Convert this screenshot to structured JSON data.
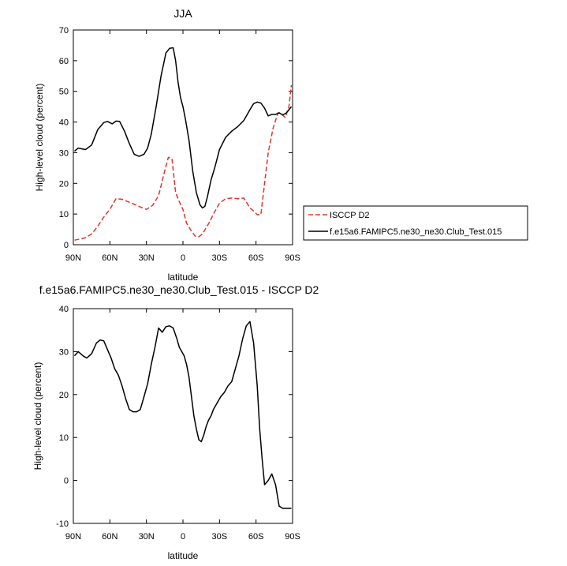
{
  "chart_data": [
    {
      "type": "line",
      "title": "JJA",
      "xlabel": "latitude",
      "ylabel": "High-level cloud (percent)",
      "xlim": [
        -90,
        90
      ],
      "ylim": [
        0,
        70
      ],
      "x_ticks": [
        -90,
        -60,
        -30,
        0,
        30,
        60,
        90
      ],
      "x_tick_labels": [
        "90N",
        "60N",
        "30N",
        "0",
        "30S",
        "60S",
        "90S"
      ],
      "y_ticks": [
        0,
        10,
        20,
        30,
        40,
        50,
        60,
        70
      ],
      "grid": false,
      "legend_position": "right",
      "series": [
        {
          "name": "ISCCP D2",
          "color": "#e8332a",
          "dash": "dashed",
          "x": [
            -89,
            -85,
            -80,
            -75,
            -70,
            -65,
            -60,
            -55,
            -50,
            -45,
            -40,
            -35,
            -30,
            -25,
            -20,
            -15,
            -12,
            -9,
            -6,
            -3,
            0,
            3,
            6,
            10,
            13,
            16,
            19,
            22,
            25,
            30,
            35,
            40,
            45,
            50,
            55,
            58,
            61,
            64,
            67,
            70,
            74,
            78,
            81,
            84,
            87,
            89
          ],
          "y": [
            1.5,
            1.8,
            2.3,
            3.5,
            6.0,
            9.0,
            11.5,
            15.0,
            14.8,
            14.0,
            13.2,
            12.3,
            11.5,
            12.8,
            16.0,
            24.0,
            28.5,
            28.0,
            17.0,
            14.0,
            11.5,
            7.0,
            5.0,
            2.8,
            2.6,
            3.5,
            5.5,
            7.5,
            10.0,
            13.5,
            15.0,
            15.2,
            15.0,
            15.2,
            12.0,
            11.0,
            9.8,
            9.8,
            20.0,
            30.0,
            38.0,
            43.0,
            42.5,
            41.5,
            45.0,
            52.0
          ]
        },
        {
          "name": "f.e15a6.FAMIPC5.ne30_ne30.Club_Test.015",
          "color": "#000000",
          "dash": "solid",
          "x": [
            -89,
            -86,
            -80,
            -75,
            -70,
            -65,
            -62,
            -58,
            -55,
            -52,
            -48,
            -44,
            -40,
            -36,
            -32,
            -29,
            -26,
            -22,
            -18,
            -14,
            -11,
            -8,
            -6,
            -4,
            -2,
            0,
            2,
            5,
            8,
            11,
            14,
            16,
            18,
            20,
            23,
            26,
            30,
            35,
            40,
            45,
            50,
            55,
            58,
            61,
            64,
            67,
            70,
            73,
            76,
            79,
            82,
            85,
            88,
            89
          ],
          "y": [
            30.5,
            31.5,
            31.0,
            32.5,
            37.5,
            39.8,
            40.2,
            39.4,
            40.3,
            40.2,
            37.0,
            33.0,
            29.5,
            28.8,
            29.5,
            31.5,
            36.0,
            45.0,
            55.0,
            62.5,
            64.0,
            64.2,
            60.0,
            53.0,
            48.0,
            45.0,
            41.0,
            34.0,
            24.0,
            17.0,
            13.0,
            12.0,
            12.5,
            15.5,
            21.0,
            25.0,
            31.0,
            35.0,
            37.0,
            38.5,
            40.5,
            44.0,
            46.0,
            46.5,
            46.2,
            44.5,
            42.0,
            42.5,
            42.5,
            43.0,
            42.3,
            43.0,
            44.5,
            45.0
          ]
        }
      ]
    },
    {
      "type": "line",
      "title": "f.e15a6.FAMIPC5.ne30_ne30.Club_Test.015 - ISCCP D2",
      "xlabel": "latitude",
      "ylabel": "High-level cloud (percent)",
      "xlim": [
        -90,
        90
      ],
      "ylim": [
        -10,
        40
      ],
      "x_ticks": [
        -90,
        -60,
        -30,
        0,
        30,
        60,
        90
      ],
      "x_tick_labels": [
        "90N",
        "60N",
        "30N",
        "0",
        "30S",
        "60S",
        "90S"
      ],
      "y_ticks": [
        -10,
        0,
        10,
        20,
        30,
        40
      ],
      "grid": false,
      "series": [
        {
          "color": "#000000",
          "dash": "solid",
          "x": [
            -89,
            -86,
            -82,
            -79,
            -75,
            -71,
            -68,
            -65,
            -62,
            -59,
            -56,
            -53,
            -50,
            -47,
            -44,
            -41,
            -38,
            -35,
            -32,
            -29,
            -26,
            -23,
            -20,
            -17,
            -14,
            -11,
            -8,
            -5,
            -3,
            -1,
            1,
            3,
            5,
            7,
            9,
            11,
            13,
            15,
            17,
            19,
            21,
            23,
            25,
            28,
            31,
            34,
            37,
            40,
            43,
            46,
            49,
            52,
            55,
            58,
            61,
            63,
            65,
            67,
            70,
            73,
            76,
            79,
            82,
            85,
            88,
            89
          ],
          "y": [
            29.0,
            30.0,
            29.0,
            28.5,
            29.5,
            32.0,
            32.7,
            32.5,
            30.5,
            28.5,
            26.0,
            24.5,
            22.0,
            19.0,
            16.5,
            16.0,
            16.0,
            16.5,
            19.5,
            22.5,
            27.0,
            31.0,
            35.5,
            34.5,
            35.8,
            36.0,
            35.5,
            33.0,
            31.0,
            30.0,
            29.0,
            27.0,
            24.0,
            19.5,
            15.0,
            12.0,
            9.5,
            9.0,
            10.5,
            12.5,
            14.0,
            15.0,
            16.5,
            18.0,
            19.5,
            20.5,
            22.0,
            23.0,
            26.0,
            29.0,
            33.0,
            36.0,
            37.0,
            32.0,
            22.0,
            12.0,
            5.0,
            -1.0,
            0.0,
            1.5,
            -1.0,
            -6.0,
            -6.5,
            -6.5,
            -6.5,
            -6.5
          ]
        }
      ]
    }
  ]
}
